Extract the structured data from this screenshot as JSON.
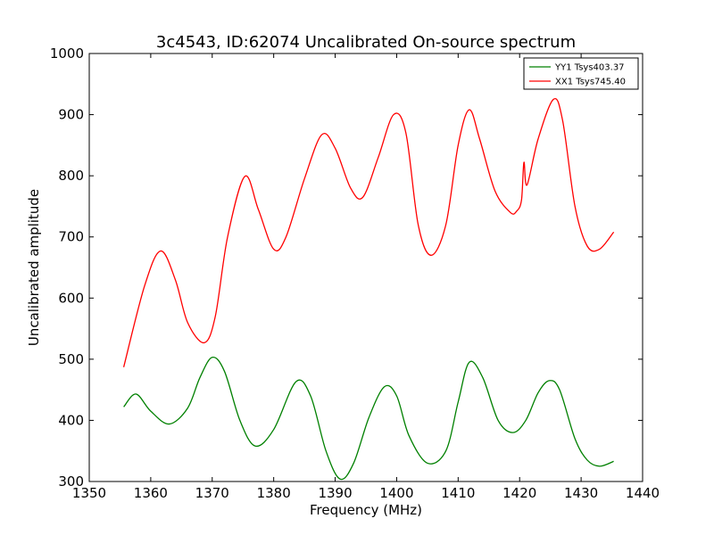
{
  "chart_data": {
    "type": "line",
    "title": "3c4543, ID:62074 Uncalibrated On-source spectrum",
    "xlabel": "Frequency (MHz)",
    "ylabel": "Uncalibrated amplitude",
    "xlim": [
      1350,
      1440
    ],
    "ylim": [
      300,
      1000
    ],
    "xticks": [
      1350,
      1360,
      1370,
      1380,
      1390,
      1400,
      1410,
      1420,
      1430,
      1440
    ],
    "yticks": [
      300,
      400,
      500,
      600,
      700,
      800,
      900,
      1000
    ],
    "grid": false,
    "legend_position": "top-right",
    "series": [
      {
        "name": "YY1 Tsys403.37",
        "color": "#008000",
        "x": [
          1355.6,
          1357.6,
          1360,
          1363,
          1366,
          1368,
          1370,
          1372,
          1374.5,
          1377,
          1380,
          1383.6,
          1386,
          1388.5,
          1390.8,
          1393,
          1395.5,
          1398,
          1400,
          1402,
          1405,
          1408,
          1410,
          1411.8,
          1414,
          1416.5,
          1418.9,
          1421,
          1423,
          1424.8,
          1426.5,
          1429,
          1431,
          1433,
          1435.3
        ],
        "y": [
          422,
          443,
          415,
          394,
          420,
          470,
          503,
          480,
          400,
          358,
          385,
          463,
          440,
          350,
          304,
          330,
          405,
          455,
          440,
          375,
          330,
          350,
          430,
          495,
          470,
          400,
          380,
          400,
          445,
          465,
          450,
          370,
          335,
          325,
          333
        ]
      },
      {
        "name": "XX1 Tsys745.40",
        "color": "#ff0000",
        "x": [
          1355.6,
          1359,
          1361.6,
          1364,
          1366,
          1368.7,
          1370.5,
          1372.5,
          1375.3,
          1377.5,
          1380,
          1382,
          1385,
          1387.8,
          1390,
          1392.5,
          1394.5,
          1397,
          1399.5,
          1401.5,
          1403.5,
          1405.6,
          1408,
          1410,
          1411.8,
          1413.5,
          1416,
          1418.5,
          1419.5,
          1420.3,
          1420.7,
          1421.2,
          1423,
          1425.5,
          1427,
          1429,
          1431,
          1433,
          1435.3
        ],
        "y": [
          487,
          620,
          677,
          630,
          560,
          527,
          570,
          700,
          799,
          745,
          680,
          700,
          795,
          867,
          845,
          780,
          765,
          830,
          900,
          870,
          720,
          670,
          720,
          850,
          908,
          860,
          775,
          740,
          742,
          760,
          822,
          785,
          860,
          925,
          890,
          750,
          685,
          680,
          708
        ]
      }
    ]
  }
}
